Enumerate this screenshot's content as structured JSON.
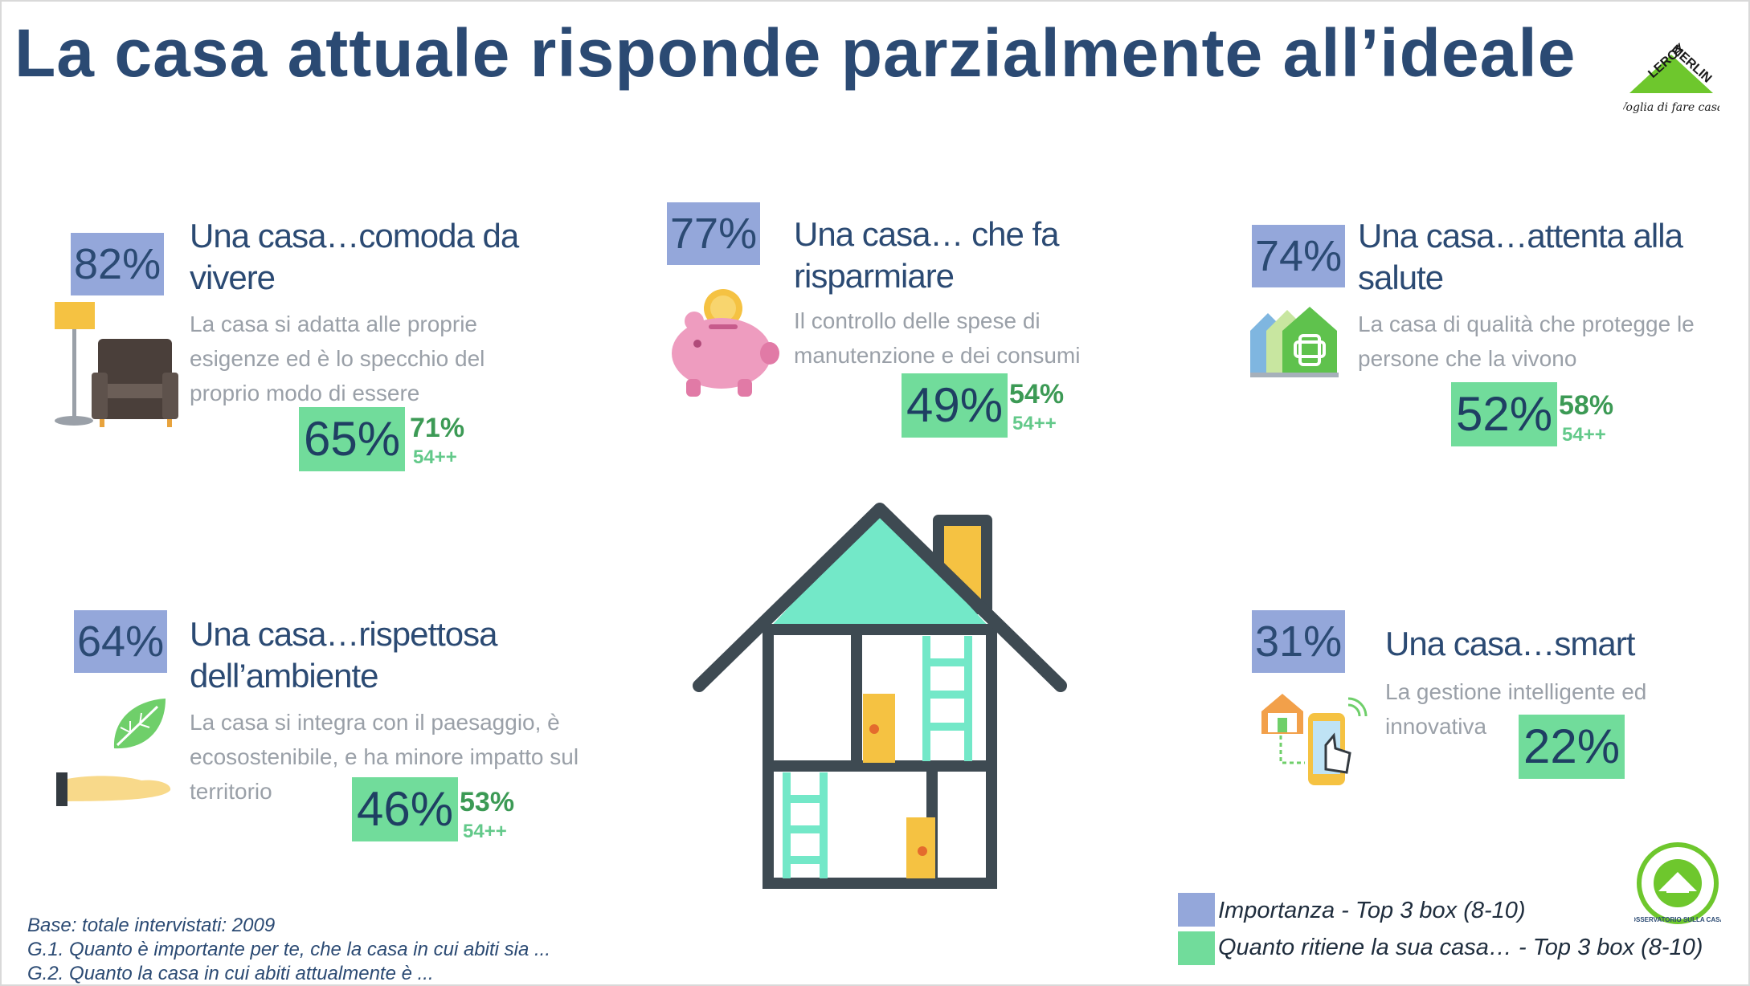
{
  "title": "La casa attuale risponde parzialmente all’ideale",
  "brand": {
    "logo_text": "LEROY MERLIN",
    "tagline": "Voglia di fare casa"
  },
  "colors": {
    "importance": "#94a7da",
    "current": "#71dc9b",
    "title": "#2b4a73",
    "roof": "#73e8c8",
    "door": "#f5c242"
  },
  "items": [
    {
      "importance": "82%",
      "heading_1": "Una casa…comoda da",
      "heading_2": "vivere",
      "desc_1": "La casa si adatta alle proprie",
      "desc_2": "esigenze ed è lo specchio del",
      "desc_3": "proprio modo di essere",
      "current": "65%",
      "current_54": "71%",
      "age_label": "54++",
      "icon": "armchair-lamp-icon"
    },
    {
      "importance": "77%",
      "heading_1": "Una casa… che fa",
      "heading_2": "risparmiare",
      "desc_1": "Il controllo delle spese di",
      "desc_2": "manutenzione e dei consumi",
      "current": "49%",
      "current_54": "54%",
      "age_label": "54++",
      "icon": "piggy-bank-icon"
    },
    {
      "importance": "74%",
      "heading_1": "Una casa…attenta alla",
      "heading_2": "salute",
      "desc_1": "La casa di qualità che protegge le",
      "desc_2": "persone che la vivono",
      "current": "52%",
      "current_54": "58%",
      "age_label": "54++",
      "icon": "health-houses-icon"
    },
    {
      "importance": "64%",
      "heading_1": "Una casa…rispettosa",
      "heading_2": "dell’ambiente",
      "desc_1": "La casa si integra con il paesaggio, è",
      "desc_2": "ecosostenibile, e ha minore impatto sul",
      "desc_3": "territorio",
      "current": "46%",
      "current_54": "53%",
      "age_label": "54++",
      "icon": "leaf-hand-icon"
    },
    {
      "importance": "31%",
      "heading_1": "Una casa…smart",
      "desc_1": "La gestione intelligente ed",
      "desc_2": "innovativa",
      "current": "22%",
      "icon": "smart-home-phone-icon"
    }
  ],
  "footnotes": {
    "base": "Base: totale intervistati: 2009",
    "g1": "G.1. Quanto è importante per te, che la casa in cui abiti sia ...",
    "g2": "G.2. Quanto la casa in cui abiti attualmente è  ..."
  },
  "legend": {
    "importance": "Importanza - Top 3 box (8-10)",
    "current": "Quanto ritiene la sua casa… - Top 3 box (8-10)"
  },
  "badge": {
    "text": "OSSERVATORIO SULLA CASA",
    "icon": "osservatorio-badge-icon"
  }
}
